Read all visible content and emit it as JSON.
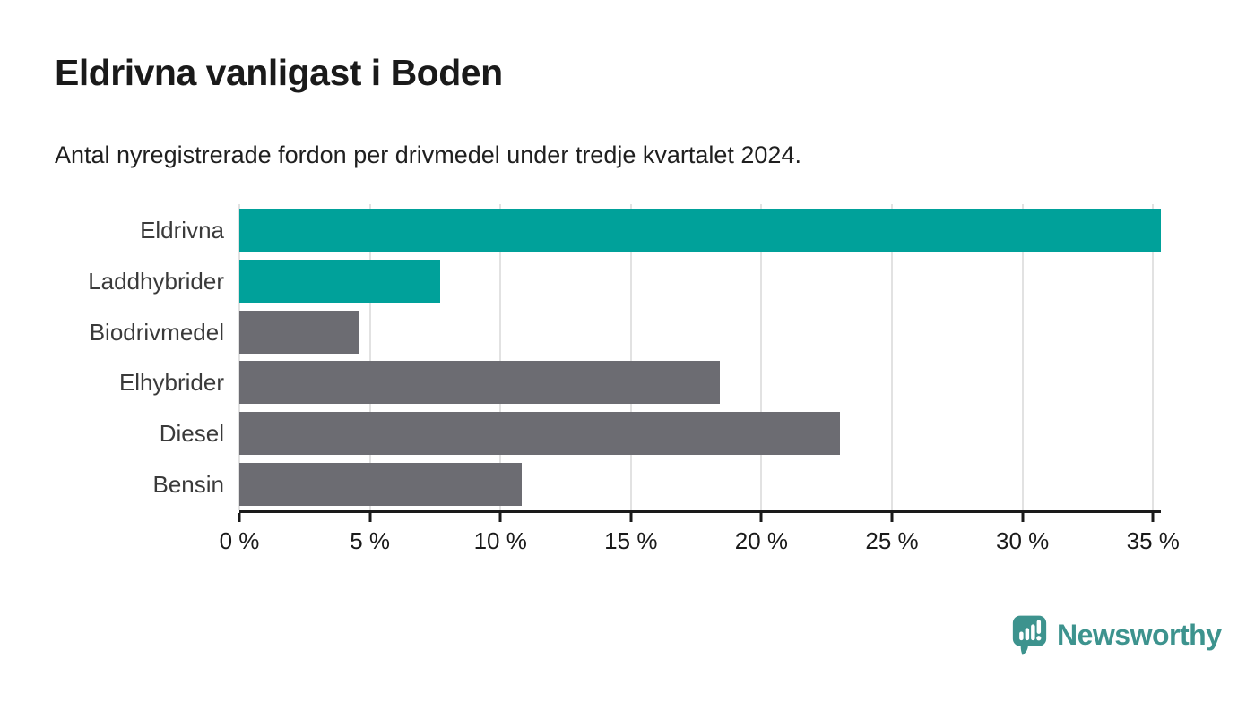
{
  "title": "Eldrivna vanligast i Boden",
  "subtitle": "Antal nyregistrerade fordon per drivmedel under tredje kvartalet 2024.",
  "chart_data": {
    "type": "bar",
    "orientation": "horizontal",
    "title": "Eldrivna vanligast i Boden",
    "subtitle": "Antal nyregistrerade fordon per drivmedel under tredje kvartalet 2024.",
    "categories": [
      "Eldrivna",
      "Laddhybrider",
      "Biodrivmedel",
      "Elhybrider",
      "Diesel",
      "Bensin"
    ],
    "values": [
      35.3,
      7.7,
      4.6,
      18.4,
      23.0,
      10.8
    ],
    "bar_colors": [
      "#00a19a",
      "#00a19a",
      "#6c6c72",
      "#6c6c72",
      "#6c6c72",
      "#6c6c72"
    ],
    "highlight_color": "#00a19a",
    "base_color": "#6c6c72",
    "xlabel": "",
    "ylabel": "",
    "xlim": [
      0,
      35.3
    ],
    "x_ticks": [
      0,
      5,
      10,
      15,
      20,
      25,
      30,
      35
    ],
    "x_tick_labels": [
      "0 %",
      "5 %",
      "10 %",
      "15 %",
      "20 %",
      "25 %",
      "30 %",
      "35 %"
    ],
    "grid": true,
    "gridline_color": "#e2e2e2",
    "axis_color": "#1a1a1a",
    "legend": "none"
  },
  "branding": {
    "logo_text": "Newsworthy",
    "logo_color": "#3d938e",
    "logo_icon": "newsworthy-speech-bubble-chart-icon"
  }
}
